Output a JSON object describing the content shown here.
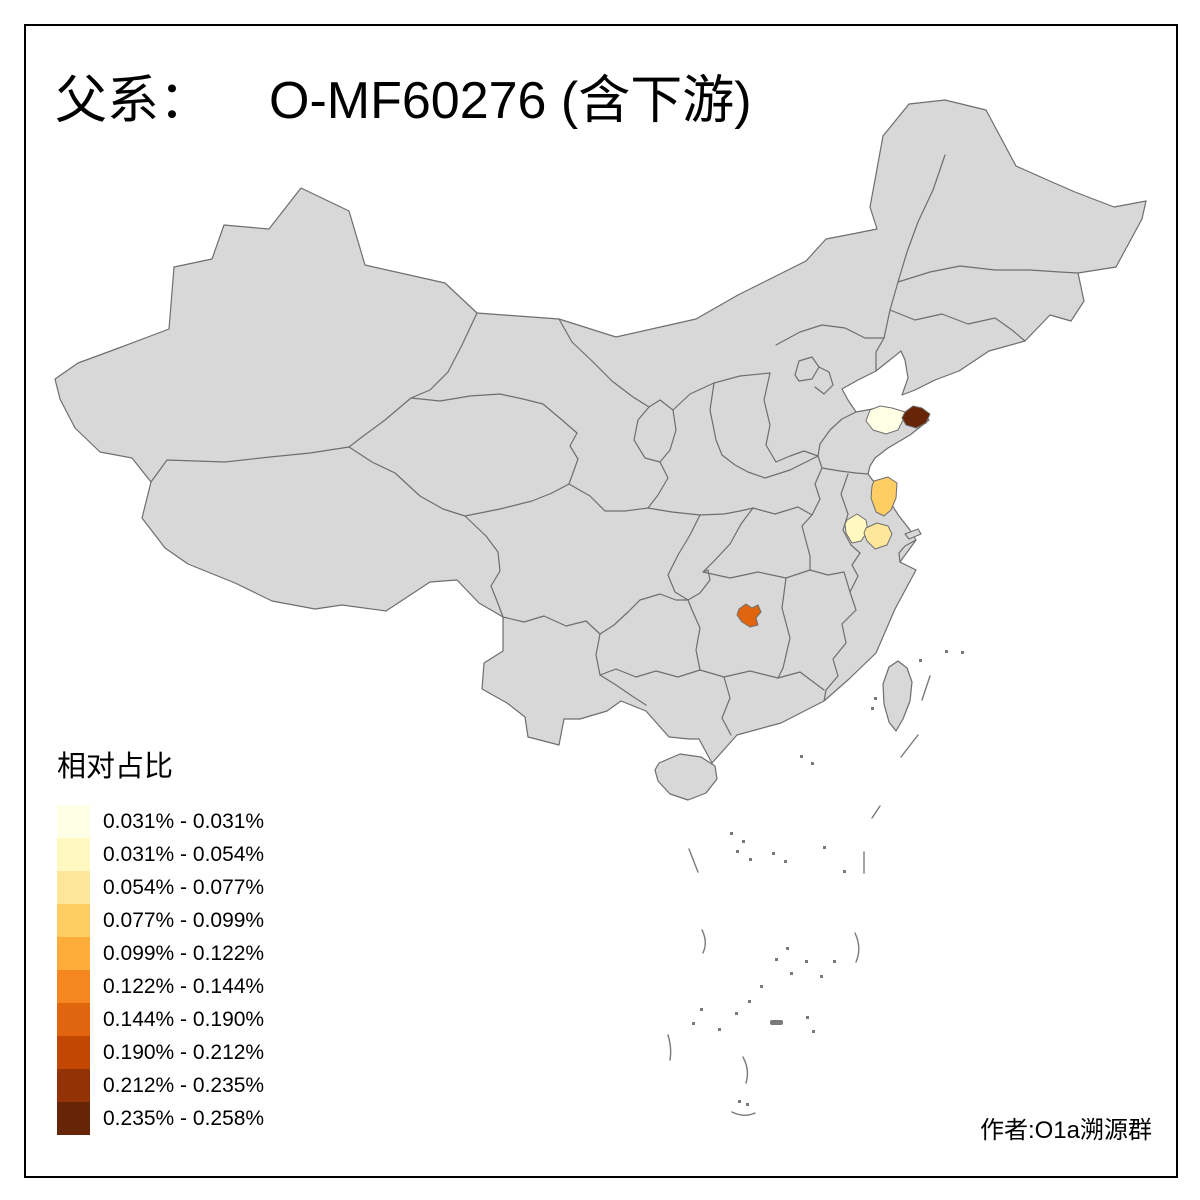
{
  "figure": {
    "title_prefix": "父系：",
    "title_main": "O-MF60276 (含下游)",
    "credit": "作者:O1a溯源群"
  },
  "legend": {
    "title": "相对占比",
    "classes": [
      {
        "label": "0.031% - 0.031%",
        "color": "#FFFFE5"
      },
      {
        "label": "0.031% - 0.054%",
        "color": "#FFF8C1"
      },
      {
        "label": "0.054% - 0.077%",
        "color": "#FEE79B"
      },
      {
        "label": "0.077% - 0.099%",
        "color": "#FECE65"
      },
      {
        "label": "0.099% - 0.122%",
        "color": "#FEAC3A"
      },
      {
        "label": "0.122% - 0.144%",
        "color": "#F68720"
      },
      {
        "label": "0.144% - 0.190%",
        "color": "#E1640E"
      },
      {
        "label": "0.190% - 0.212%",
        "color": "#C14702"
      },
      {
        "label": "0.212% - 0.235%",
        "color": "#933204"
      },
      {
        "label": "0.235% - 0.258%",
        "color": "#662506"
      }
    ]
  },
  "map": {
    "type": "choropleth",
    "region": "China, province boundaries",
    "base_fill": "#D8D8D8",
    "border_color": "#6E6E6E",
    "frame_color": "#000000",
    "background": "#FFFFFF",
    "highlights": [
      {
        "area": "shandong-peninsula-west",
        "class_index": 0,
        "range": "0.031% - 0.031%"
      },
      {
        "area": "shandong-peninsula-east",
        "class_index": 9,
        "range": "0.235% - 0.258%"
      },
      {
        "area": "jiangsu-north-coast",
        "class_index": 3,
        "range": "0.077% - 0.099%"
      },
      {
        "area": "jiangsu-south-west",
        "class_index": 1,
        "range": "0.031% - 0.054%"
      },
      {
        "area": "jiangsu-south-central",
        "class_index": 2,
        "range": "0.054% - 0.077%"
      },
      {
        "area": "hunan-west",
        "class_index": 6,
        "range": "0.144% - 0.190%"
      }
    ]
  }
}
